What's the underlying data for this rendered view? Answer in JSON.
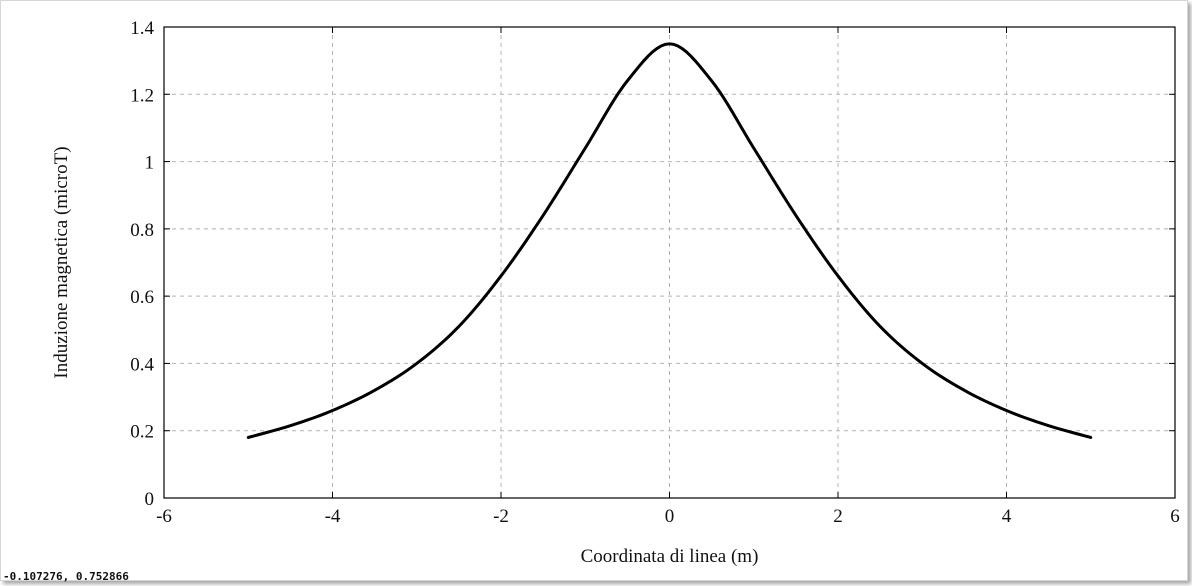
{
  "chart_data": {
    "type": "line",
    "title": "",
    "xlabel": "Coordinata di linea (m)",
    "ylabel": "Induzione magnetica (microT)",
    "xlim": [
      -6,
      6
    ],
    "ylim": [
      0,
      1.4
    ],
    "xticks": [
      -6,
      -4,
      -2,
      0,
      2,
      4,
      6
    ],
    "yticks": [
      0,
      0.2,
      0.4,
      0.6,
      0.8,
      1,
      1.2,
      1.4
    ],
    "xtick_labels": [
      "-6",
      "-4",
      "-2",
      "0",
      "2",
      "4",
      "6"
    ],
    "ytick_labels": [
      "0",
      "0.2",
      "0.4",
      "0.6",
      "0.8",
      "1",
      "1.2",
      "1.4"
    ],
    "grid": true,
    "line_color": "#000000",
    "series": [
      {
        "x": [
          -5,
          -4.5,
          -4,
          -3.5,
          -3,
          -2.5,
          -2,
          -1.5,
          -1,
          -0.5,
          0,
          0.5,
          1,
          1.5,
          2,
          2.5,
          3,
          3.5,
          4,
          4.5,
          5
        ],
        "y": [
          0.18,
          0.215,
          0.26,
          0.32,
          0.4,
          0.51,
          0.66,
          0.84,
          1.04,
          1.24,
          1.35,
          1.24,
          1.04,
          0.84,
          0.66,
          0.51,
          0.4,
          0.32,
          0.26,
          0.215,
          0.18
        ]
      }
    ]
  },
  "status_readout": "-0.107276, 0.752866"
}
